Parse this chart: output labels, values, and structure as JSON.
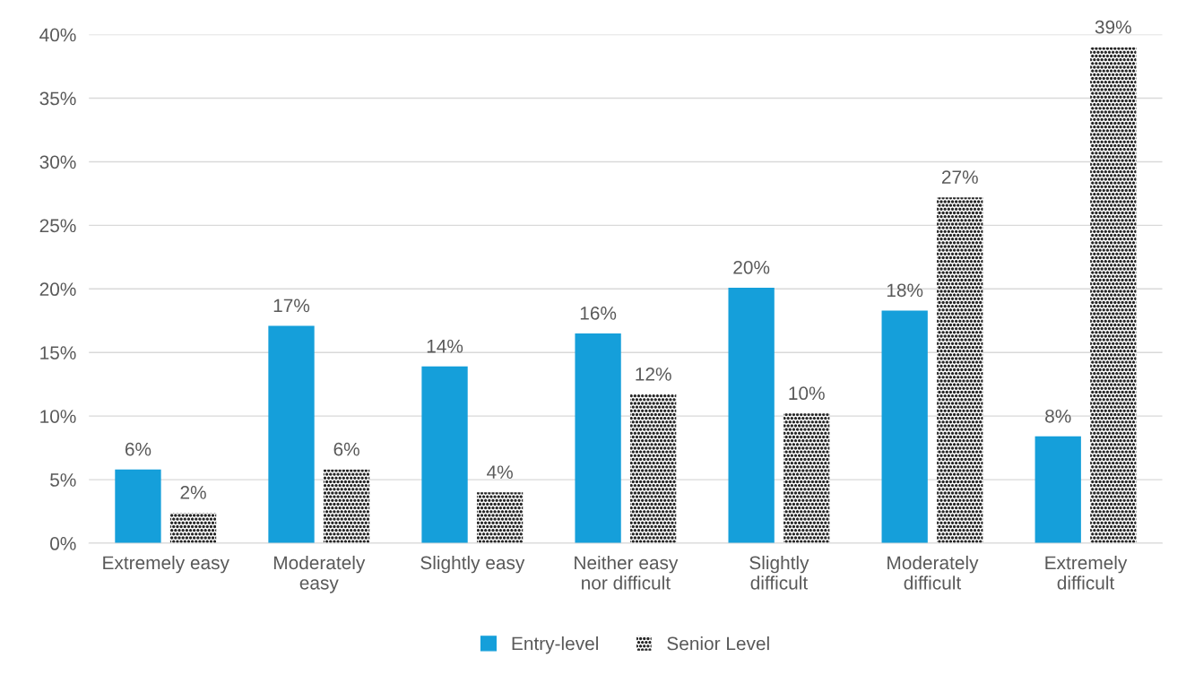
{
  "chart_data": {
    "type": "bar",
    "categories": [
      "Extremely easy",
      "Moderately\neasy",
      "Slightly easy",
      "Neither easy\nnor difficult",
      "Slightly\ndifficult",
      "Moderately\ndifficult",
      "Extremely\ndifficult"
    ],
    "series": [
      {
        "name": "Entry-level",
        "color": "#159fda",
        "values": [
          5.8,
          17.1,
          13.9,
          16.5,
          20.1,
          18.3,
          8.4
        ],
        "value_labels": [
          "6%",
          "17%",
          "14%",
          "16%",
          "20%",
          "18%",
          "8%"
        ]
      },
      {
        "name": "Senior Level",
        "color": "#262626",
        "values": [
          2.4,
          5.8,
          4.0,
          11.7,
          10.2,
          27.2,
          39.0
        ],
        "value_labels": [
          "2%",
          "6%",
          "4%",
          "12%",
          "10%",
          "27%",
          "39%"
        ]
      }
    ],
    "ylim": [
      0,
      40
    ],
    "yticks": [
      {
        "value": 0,
        "label": "0%"
      },
      {
        "value": 5,
        "label": "5%"
      },
      {
        "value": 10,
        "label": "10%"
      },
      {
        "value": 15,
        "label": "15%"
      },
      {
        "value": 20,
        "label": "20%"
      },
      {
        "value": 25,
        "label": "25%"
      },
      {
        "value": 30,
        "label": "30%"
      },
      {
        "value": 35,
        "label": "35%"
      },
      {
        "value": 40,
        "label": "40%"
      }
    ],
    "grid": "y",
    "legend": "bottom"
  }
}
